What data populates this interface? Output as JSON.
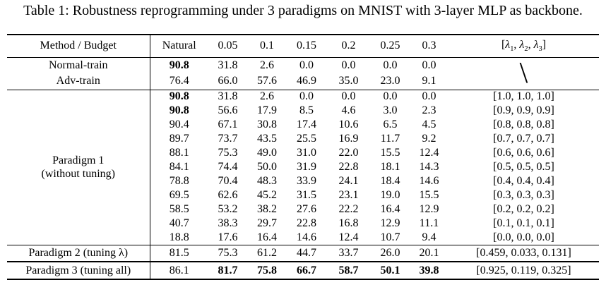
{
  "title": "Table 1: Robustness reprogramming under 3 paradigms on MNIST with 3-layer MLP as backbone.",
  "table": {
    "header": {
      "method_budget": "Method / Budget",
      "natural": "Natural",
      "budgets": [
        "0.05",
        "0.1",
        "0.15",
        "0.2",
        "0.25",
        "0.3"
      ],
      "lambda_html": "[<i>λ</i><sub>1</sub>, <i>λ</i><sub>2</sub>, <i>λ</i><sub>3</sub>]"
    },
    "baseline": {
      "lambda_placeholder": "\\",
      "rows": [
        {
          "method": "Normal-train",
          "values": [
            "90.8",
            "31.8",
            "2.6",
            "0.0",
            "0.0",
            "0.0",
            "0.0"
          ],
          "bold": [
            0
          ]
        },
        {
          "method": "Adv-train",
          "values": [
            "76.4",
            "66.0",
            "57.6",
            "46.9",
            "35.0",
            "23.0",
            "9.1"
          ],
          "bold": []
        }
      ]
    },
    "paradigm1": {
      "label_line1": "Paradigm 1",
      "label_line2": "(without tuning)",
      "rows": [
        {
          "values": [
            "90.8",
            "31.8",
            "2.6",
            "0.0",
            "0.0",
            "0.0",
            "0.0"
          ],
          "bold": [
            0
          ],
          "lambda": "[1.0, 1.0, 1.0]"
        },
        {
          "values": [
            "90.8",
            "56.6",
            "17.9",
            "8.5",
            "4.6",
            "3.0",
            "2.3"
          ],
          "bold": [
            0
          ],
          "lambda": "[0.9, 0.9, 0.9]"
        },
        {
          "values": [
            "90.4",
            "67.1",
            "30.8",
            "17.4",
            "10.6",
            "6.5",
            "4.5"
          ],
          "bold": [],
          "lambda": "[0.8, 0.8, 0.8]"
        },
        {
          "values": [
            "89.7",
            "73.7",
            "43.5",
            "25.5",
            "16.9",
            "11.7",
            "9.2"
          ],
          "bold": [],
          "lambda": "[0.7, 0.7, 0.7]"
        },
        {
          "values": [
            "88.1",
            "75.3",
            "49.0",
            "31.0",
            "22.0",
            "15.5",
            "12.4"
          ],
          "bold": [],
          "lambda": "[0.6, 0.6, 0.6]"
        },
        {
          "values": [
            "84.1",
            "74.4",
            "50.0",
            "31.9",
            "22.8",
            "18.1",
            "14.3"
          ],
          "bold": [],
          "lambda": "[0.5, 0.5, 0.5]"
        },
        {
          "values": [
            "78.8",
            "70.4",
            "48.3",
            "33.9",
            "24.1",
            "18.4",
            "14.6"
          ],
          "bold": [],
          "lambda": "[0.4, 0.4, 0.4]"
        },
        {
          "values": [
            "69.5",
            "62.6",
            "45.2",
            "31.5",
            "23.1",
            "19.0",
            "15.5"
          ],
          "bold": [],
          "lambda": "[0.3, 0.3, 0.3]"
        },
        {
          "values": [
            "58.5",
            "53.2",
            "38.2",
            "27.6",
            "22.2",
            "16.4",
            "12.9"
          ],
          "bold": [],
          "lambda": "[0.2, 0.2, 0.2]"
        },
        {
          "values": [
            "40.7",
            "38.3",
            "29.7",
            "22.8",
            "16.8",
            "12.9",
            "11.1"
          ],
          "bold": [],
          "lambda": "[0.1, 0.1, 0.1]"
        },
        {
          "values": [
            "18.8",
            "17.6",
            "16.4",
            "14.6",
            "12.4",
            "10.7",
            "9.4"
          ],
          "bold": [],
          "lambda": "[0.0, 0.0, 0.0]"
        }
      ]
    },
    "paradigm2": {
      "method": "Paradigm 2 (tuning λ)",
      "values": [
        "81.5",
        "75.3",
        "61.2",
        "44.7",
        "33.7",
        "26.0",
        "20.1"
      ],
      "bold": [],
      "lambda": "[0.459, 0.033, 0.131]"
    },
    "paradigm3": {
      "method": "Paradigm 3 (tuning all)",
      "values": [
        "86.1",
        "81.7",
        "75.8",
        "66.7",
        "58.7",
        "50.1",
        "39.8"
      ],
      "bold": [
        1,
        2,
        3,
        4,
        5,
        6
      ],
      "lambda": "[0.925, 0.119, 0.325]"
    }
  }
}
